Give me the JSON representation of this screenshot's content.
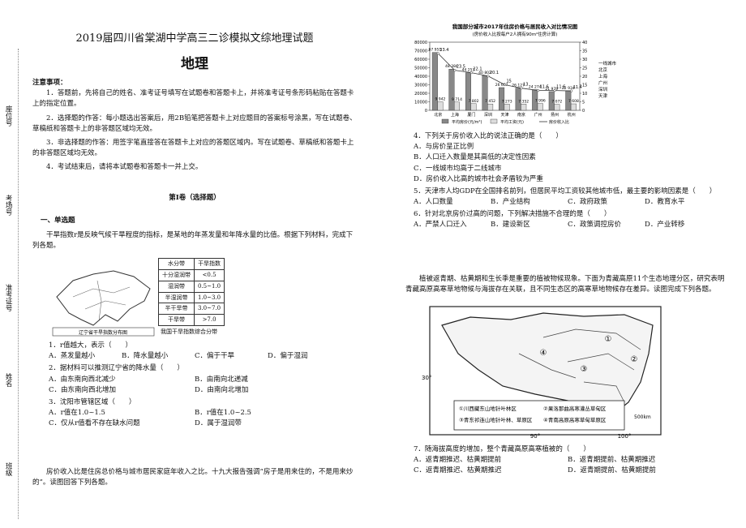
{
  "binding": [
    "座位号",
    "考场号",
    "准考证号",
    "姓名",
    "班级"
  ],
  "header": {
    "exam_title": "2019届四川省棠湖中学高三二诊模拟文综地理试题",
    "subject": "地理"
  },
  "notice": {
    "title": "注意事项：",
    "items": [
      "1．答题前，先将自己的姓名、准考证号填写在试题卷和答题卡上，并将准考证号条形码粘贴在答题卡上的指定位置。",
      "2．选择题的作答：每小题选出答案后，用2B铅笔把答题卡上对应题目的答案标号涂黑，写在试题卷、草稿纸和答题卡上的非答题区域均无效。",
      "3．非选择题的作答：用签字笔直接答在答题卡上对应的答题区域内。写在试题卷、草稿纸和答题卡上的非答题区域均无效。",
      "4．考试结束后，请将本试题卷和答题卡一并上交。"
    ]
  },
  "section": "第Ⅰ卷（选择题）",
  "part": "一、单选题",
  "intro1": "干旱指数r是反映气候干旱程度的指标，是某地的年蒸发量和年降水量的比值。根据下列材料，完成下列各题。",
  "figure1": {
    "map_label": "辽宁省干旱指数分布图",
    "table": {
      "header": [
        "水分带",
        "干旱指数"
      ],
      "rows": [
        [
          "十分湿润带",
          "<0.5"
        ],
        [
          "湿润带",
          "0.5~1.0"
        ],
        [
          "半湿润带",
          "1.0~3.0"
        ],
        [
          "半干旱带",
          "3.0~7.0"
        ],
        [
          "干旱带",
          ">7.0"
        ]
      ]
    },
    "caption": "我国干旱指数综合分带"
  },
  "questions_left": [
    {
      "stem": "1．r值越大，表示（　　）",
      "options": [
        "A．蒸发量越小",
        "B．降水量越小",
        "C．偏于干旱",
        "D．偏于湿润"
      ]
    },
    {
      "stem": "2．据材料可以推测辽宁省的降水量（　　）",
      "options": [
        "A．由东南向西北减少",
        "B．由南向北递减",
        "C．由东南向西北增加",
        "D．由南向北增加"
      ]
    },
    {
      "stem": "3．沈阳市管辖区域（　　）",
      "options": [
        "A．r值在1.0~1.5",
        "B．r值在1.0~2.5",
        "C．仅从r值看不存在缺水问题",
        "D．属于湿润带"
      ]
    }
  ],
  "intro2": "房价收入比是住房总价格与城市居民家庭年收入之比。十九大报告强调“房子是用来住的，不是用来炒的”。读图回答下列各题。",
  "figure2": {
    "title": "我国部分城市2017年住房价格与居民收入对比情况图",
    "subtitle": "(房价收入比按每户2人拥有90m²住房计算)",
    "categories": [
      "北京",
      "上海",
      "厦门",
      "深圳",
      "天津",
      "南京",
      "广州",
      "扬州",
      "杭州"
    ],
    "ylim": [
      0,
      80000
    ],
    "yticks": [
      0,
      10000,
      20000,
      30000,
      40000,
      50000,
      60000,
      70000,
      80000
    ],
    "y2lim": [
      0,
      40
    ],
    "y2ticks": [
      0,
      5,
      10,
      15,
      20,
      25,
      30,
      35,
      40
    ],
    "series": [
      {
        "name": "平均房价(元/m²)",
        "color": "#888888",
        "values": [
          67951,
          48384,
          44253,
          40802,
          26687,
          26127,
          24274,
          21979,
          22934
        ],
        "value_labels": [
          "67 951",
          "48 384",
          "44 253",
          "40 802",
          "26 687",
          "26 127",
          "24 274",
          "21 979",
          "22 934"
        ]
      },
      {
        "name": "平均工资(元)",
        "color": "#dddddd",
        "values": [
          9942,
          9714,
          7802,
          7452,
          7273,
          7352,
          7996,
          7072,
          7608
        ],
        "value_labels": [
          "9 942",
          "9 714",
          "7 802",
          "7 452",
          "7 273",
          "7 352",
          "7 996",
          "7 072",
          "7 608"
        ]
      },
      {
        "name": "房价收入比",
        "color": "#333333",
        "axis": "y2",
        "values": [
          33.4,
          23.5,
          22.1,
          20.1,
          15,
          13,
          11.6,
          11.6,
          11.4
        ]
      }
    ],
    "side_note": [
      "一线城市",
      "北京",
      "上海",
      "广州",
      "深圳",
      "天津"
    ]
  },
  "questions_right": [
    {
      "stem": "4．下列关于房价收入比的说法正确的是（　　）",
      "options": [
        "A．与房价呈正比例",
        "B．人口迁入数量是其高低的决定性因素",
        "C．一线城市均高于二线城市",
        "D．房价收入比高的城市社会矛盾较为严重"
      ],
      "layout": "col"
    },
    {
      "stem": "5．天津市人均GDP在全国排名前列，但居民平均工资较其他城市低，最主要的影响因素是（　　）",
      "options": [
        "A．人口数量",
        "B．产业结构",
        "C．政府政策",
        "D．教育水平"
      ],
      "layout": "row"
    },
    {
      "stem": "6．针对北京房价过高的问题，下列解决措施不合理的是（　　）",
      "options": [
        "A．严禁人口迁入",
        "B．建设新区",
        "C．政策调控房价",
        "D．产业转移"
      ],
      "layout": "row"
    }
  ],
  "intro3": "植被返青期、枯黄期和生长季是重要的植被物候现象。下面为青藏高原11个生态地理分区，研究表明青藏高原高寒草地物候与海拔存在关联，且不同生态区的高寒草地物候存在差异。读图完成下列各题。",
  "figure3": {
    "zones": [
      "①",
      "②",
      "③",
      "④"
    ],
    "lat": [
      "30°"
    ],
    "lon": [
      "90°",
      "100°"
    ],
    "scale": "500km",
    "legend": [
      "①川西藏东山地针叶林区",
      "②果洛那曲高寒灌丛草甸区",
      "③青东祁连山地针叶林、草原区",
      "④青南高原高寒草甸草原区"
    ]
  },
  "question7": {
    "stem": "7．随海拔高度的增加，整个青藏高原高寒植被的（　　）",
    "options": [
      "A．返青期推迟、枯黄期提前",
      "B．返青期提前、枯黄期推迟",
      "C．返青期推迟、枯黄期推迟",
      "D．返青期提前、枯黄期提前"
    ]
  }
}
